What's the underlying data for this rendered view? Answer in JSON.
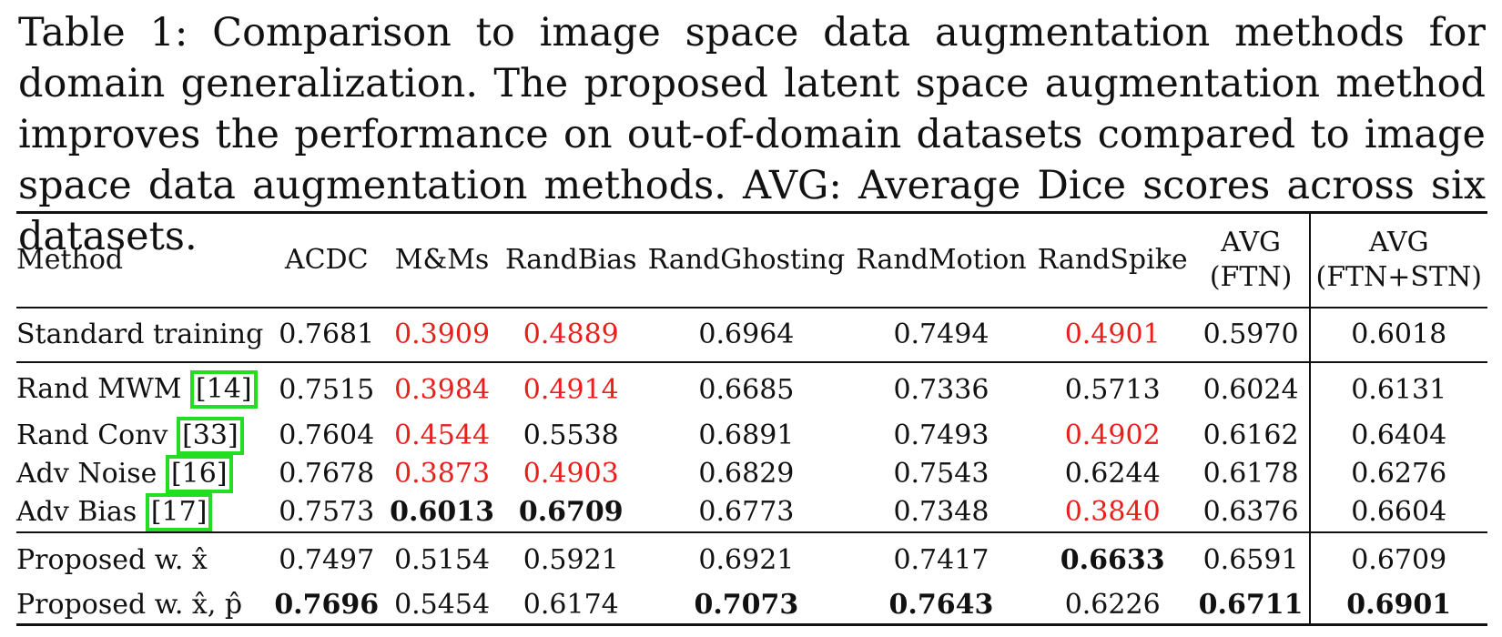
{
  "caption": "Table 1: Comparison to image space data augmentation methods for domain generalization. The proposed latent space augmentation method improves the performance on out-of-domain datasets compared to image space data augmentation methods. AVG: Average Dice scores across six datasets.",
  "table": {
    "columns": [
      "Method",
      "ACDC",
      "M&Ms",
      "RandBias",
      "RandGhosting",
      "RandMotion",
      "RandSpike",
      "AVG (FTN)",
      "AVG (FTN+STN)"
    ],
    "header": {
      "method": "Method",
      "acdc": "ACDC",
      "mms": "M&Ms",
      "randbias": "RandBias",
      "randghosting": "RandGhosting",
      "randmotion": "RandMotion",
      "randspike": "RandSpike",
      "avg_ftn_1": "AVG",
      "avg_ftn_2": "(FTN)",
      "avg_ftnstn_1": "AVG",
      "avg_ftnstn_2": "(FTN+STN)"
    },
    "rows": [
      {
        "method": "Standard training",
        "cite": "",
        "values": [
          "0.7681",
          "0.3909",
          "0.4889",
          "0.6964",
          "0.7494",
          "0.4901",
          "0.5970",
          "0.6018"
        ]
      },
      {
        "method": "Rand MWM",
        "cite": "[14]",
        "values": [
          "0.7515",
          "0.3984",
          "0.4914",
          "0.6685",
          "0.7336",
          "0.5713",
          "0.6024",
          "0.6131"
        ]
      },
      {
        "method": "Rand Conv",
        "cite": "[33]",
        "values": [
          "0.7604",
          "0.4544",
          "0.5538",
          "0.6891",
          "0.7493",
          "0.4902",
          "0.6162",
          "0.6404"
        ]
      },
      {
        "method": "Adv Noise",
        "cite": "[16]",
        "values": [
          "0.7678",
          "0.3873",
          "0.4903",
          "0.6829",
          "0.7543",
          "0.6244",
          "0.6178",
          "0.6276"
        ]
      },
      {
        "method": "Adv Bias",
        "cite": "[17]",
        "values": [
          "0.7573",
          "0.6013",
          "0.6709",
          "0.6773",
          "0.7348",
          "0.3840",
          "0.6376",
          "0.6604"
        ]
      },
      {
        "method": "Proposed w. x̂",
        "cite": "",
        "values": [
          "0.7497",
          "0.5154",
          "0.5921",
          "0.6921",
          "0.7417",
          "0.6633",
          "0.6591",
          "0.6709"
        ]
      },
      {
        "method": "Proposed w. x̂, p̂",
        "cite": "",
        "values": [
          "0.7696",
          "0.5454",
          "0.6174",
          "0.7073",
          "0.7643",
          "0.6226",
          "0.6711",
          "0.6901"
        ]
      }
    ]
  },
  "colors": {
    "highlight_red": "#e8201c",
    "cite_box_green": "#22dd22"
  }
}
